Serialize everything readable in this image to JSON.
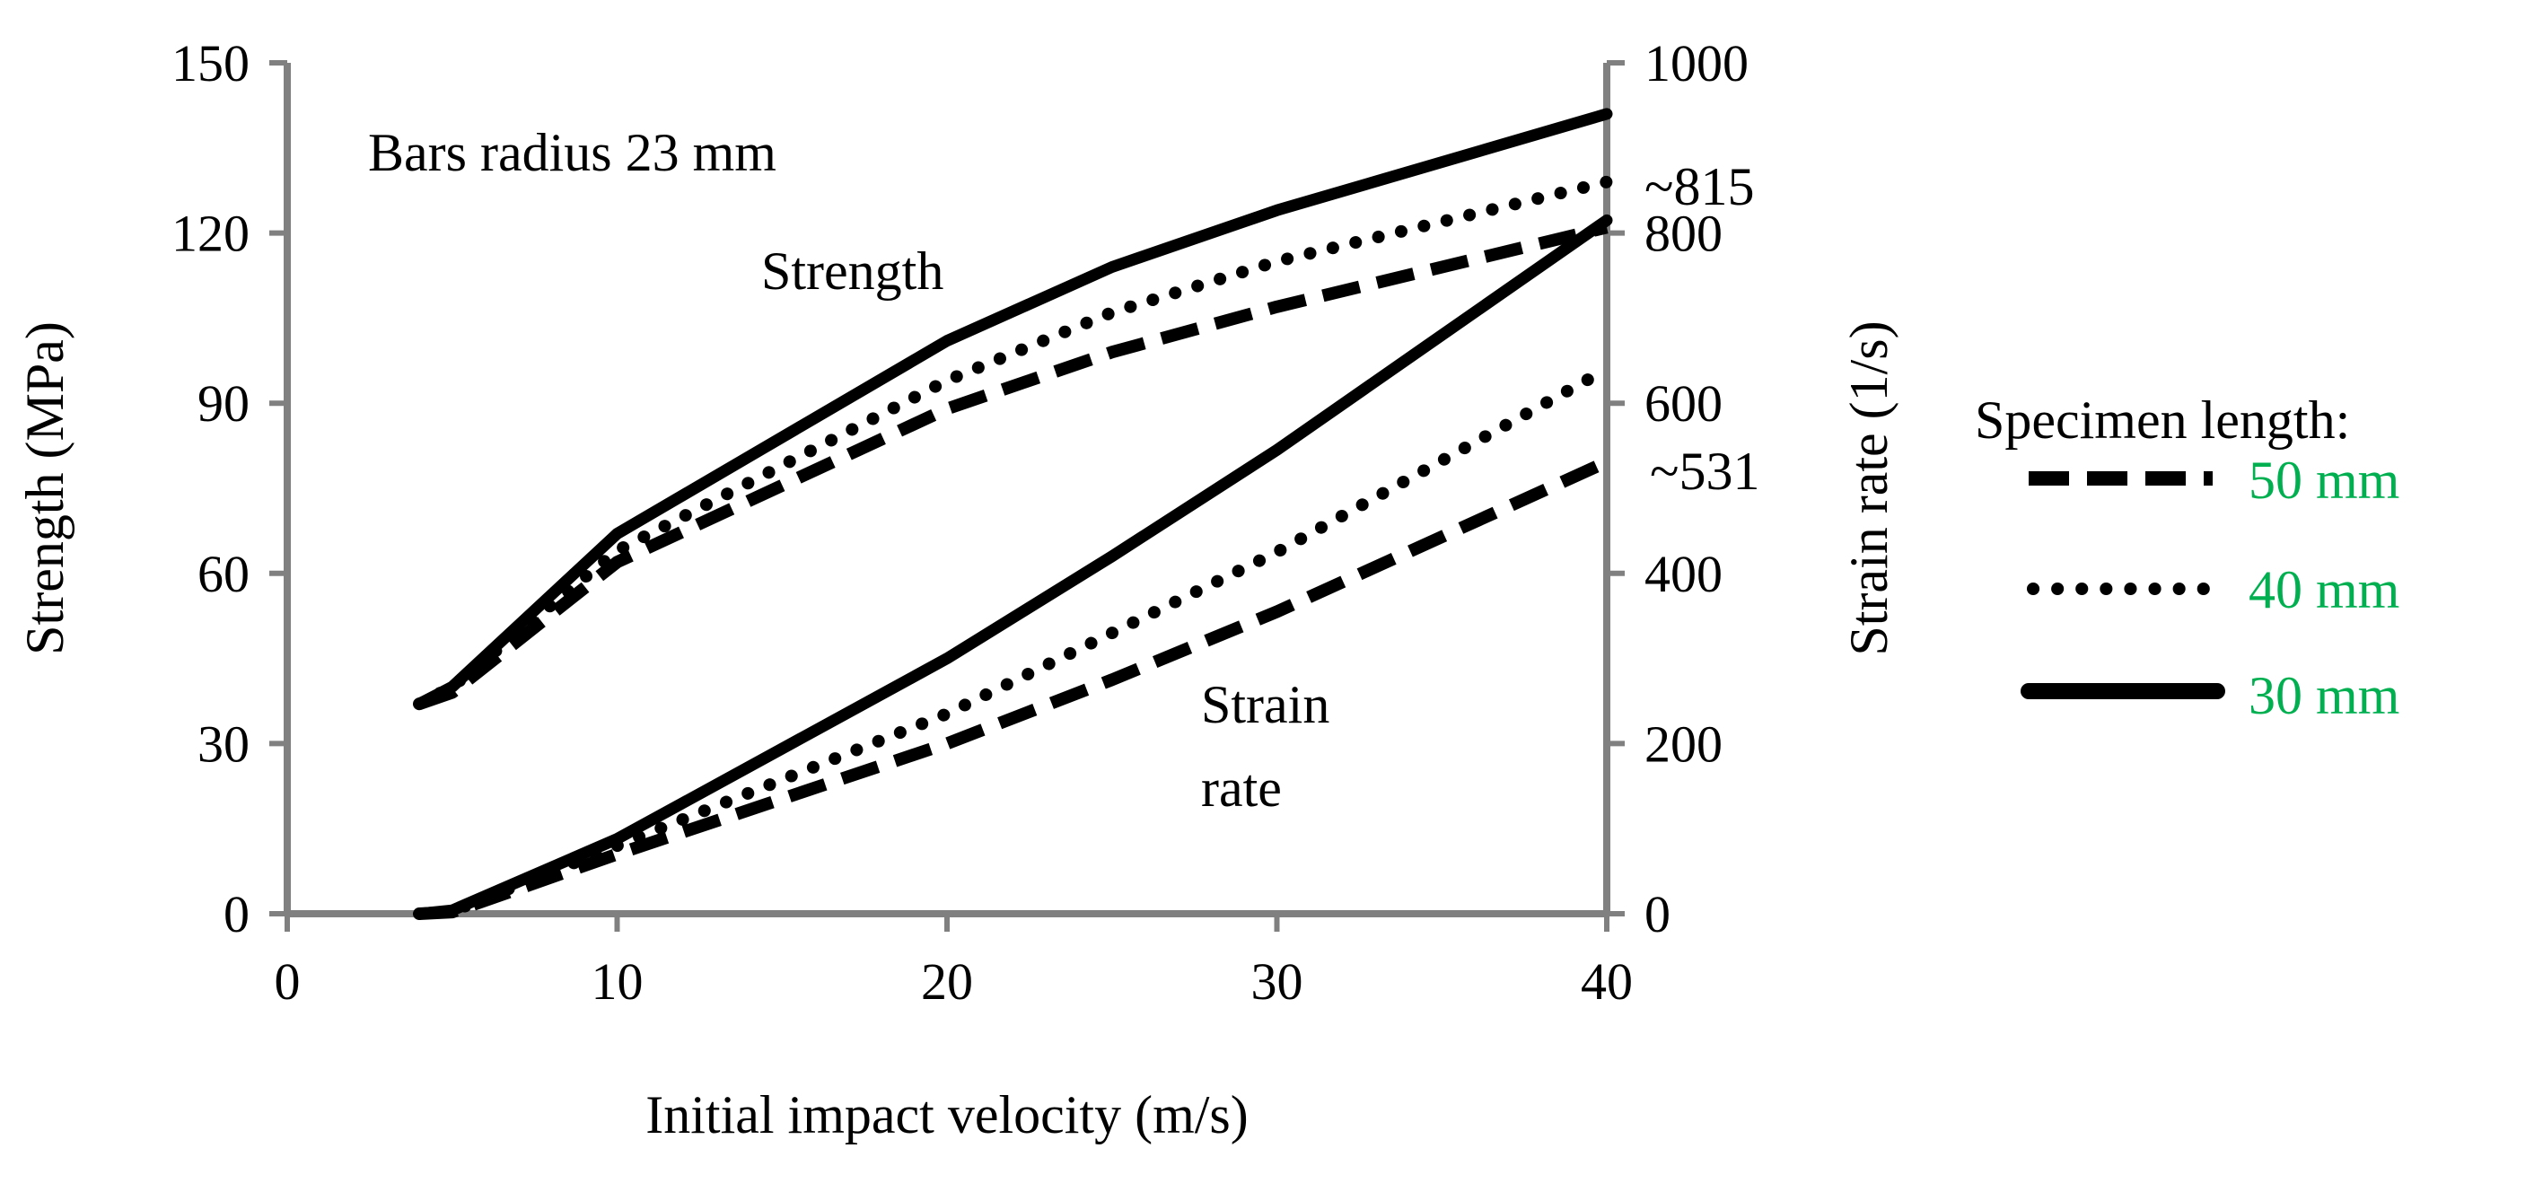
{
  "chart_data": {
    "type": "line",
    "xlabel": "Initial impact velocity (m/s)",
    "ylabel": "Strength (MPa)",
    "y2label": "Strain rate (1/s)",
    "xlim": [
      0,
      40
    ],
    "ylim": [
      0,
      150
    ],
    "y2lim": [
      0,
      1000
    ],
    "xticks": [
      0,
      10,
      20,
      30,
      40
    ],
    "yticks": [
      0,
      30,
      60,
      90,
      120,
      150
    ],
    "y2ticks": [
      0,
      200,
      400,
      600,
      800,
      1000
    ],
    "annotations": {
      "bars_radius": "Bars radius 23 mm",
      "strength": "Strength",
      "strain_line1": "Strain",
      "strain_line2": "rate",
      "value_815": "~815",
      "value_531": "~531"
    },
    "legend": {
      "title": "Specimen length:",
      "placement": "right",
      "entries": [
        {
          "label": "50 mm",
          "style": "dashed"
        },
        {
          "label": "40 mm",
          "style": "dotted"
        },
        {
          "label": "30 mm",
          "style": "solid"
        }
      ]
    },
    "series": [
      {
        "name": "Strength 50 mm",
        "group": "strength",
        "axis": "left",
        "style": "dashed",
        "x": [
          4,
          5,
          10,
          20,
          25,
          30,
          40
        ],
        "y": [
          37,
          39,
          62,
          89,
          99,
          107,
          121
        ]
      },
      {
        "name": "Strength 40 mm",
        "group": "strength",
        "axis": "left",
        "style": "dotted",
        "x": [
          4,
          5,
          10,
          20,
          25,
          30,
          40
        ],
        "y": [
          37,
          40,
          64,
          94,
          106,
          115,
          129
        ]
      },
      {
        "name": "Strength 30 mm",
        "group": "strength",
        "axis": "left",
        "style": "solid",
        "x": [
          4,
          5,
          10,
          20,
          25,
          30,
          40
        ],
        "y": [
          37,
          40,
          67,
          101,
          114,
          124,
          141
        ]
      },
      {
        "name": "Strain rate 50 mm",
        "group": "strain_rate",
        "axis": "right",
        "style": "dashed",
        "x": [
          4,
          5,
          10,
          20,
          25,
          30,
          40
        ],
        "y": [
          0,
          2,
          70,
          200,
          275,
          355,
          531
        ]
      },
      {
        "name": "Strain rate 40 mm",
        "group": "strain_rate",
        "axis": "right",
        "style": "dotted",
        "x": [
          4,
          5,
          10,
          20,
          25,
          30,
          40
        ],
        "y": [
          0,
          3,
          80,
          235,
          330,
          425,
          640
        ]
      },
      {
        "name": "Strain rate 30 mm",
        "group": "strain_rate",
        "axis": "right",
        "style": "solid",
        "x": [
          4,
          5,
          10,
          20,
          25,
          30,
          40
        ],
        "y": [
          0,
          4,
          88,
          300,
          420,
          545,
          815
        ]
      }
    ],
    "colors": {
      "axis": "#808080",
      "series": "#000000",
      "green_text": "#00B050",
      "red_text": "#FF0000"
    }
  }
}
